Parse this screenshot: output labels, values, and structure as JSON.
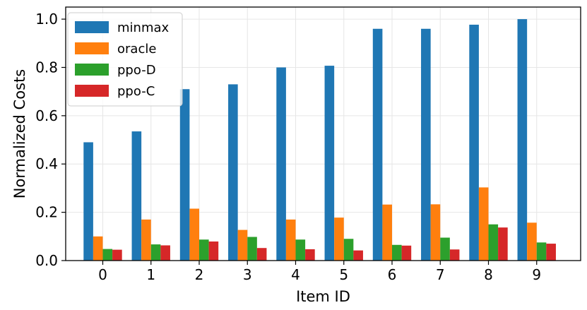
{
  "chart_data": {
    "type": "bar",
    "title": "",
    "xlabel": "Item ID",
    "ylabel": "Normalized Costs",
    "categories": [
      "0",
      "1",
      "2",
      "3",
      "4",
      "5",
      "6",
      "7",
      "8",
      "9"
    ],
    "ylim": [
      0,
      1.05
    ],
    "yticks": [
      "0.0",
      "0.2",
      "0.4",
      "0.6",
      "0.8",
      "1.0"
    ],
    "grid": true,
    "legend_position": "top-left",
    "series": [
      {
        "name": "minmax",
        "color": "#1f77b4",
        "values": [
          0.49,
          0.535,
          0.71,
          0.73,
          0.8,
          0.807,
          0.96,
          0.96,
          0.977,
          1.0
        ]
      },
      {
        "name": "oracle",
        "color": "#ff7f0e",
        "values": [
          0.1,
          0.17,
          0.215,
          0.127,
          0.17,
          0.178,
          0.232,
          0.233,
          0.303,
          0.157
        ]
      },
      {
        "name": "ppo-D",
        "color": "#2ca02c",
        "values": [
          0.048,
          0.067,
          0.087,
          0.098,
          0.087,
          0.09,
          0.065,
          0.095,
          0.15,
          0.075
        ]
      },
      {
        "name": "ppo-C",
        "color": "#d62728",
        "values": [
          0.045,
          0.063,
          0.079,
          0.052,
          0.047,
          0.042,
          0.062,
          0.046,
          0.137,
          0.07
        ]
      }
    ]
  }
}
